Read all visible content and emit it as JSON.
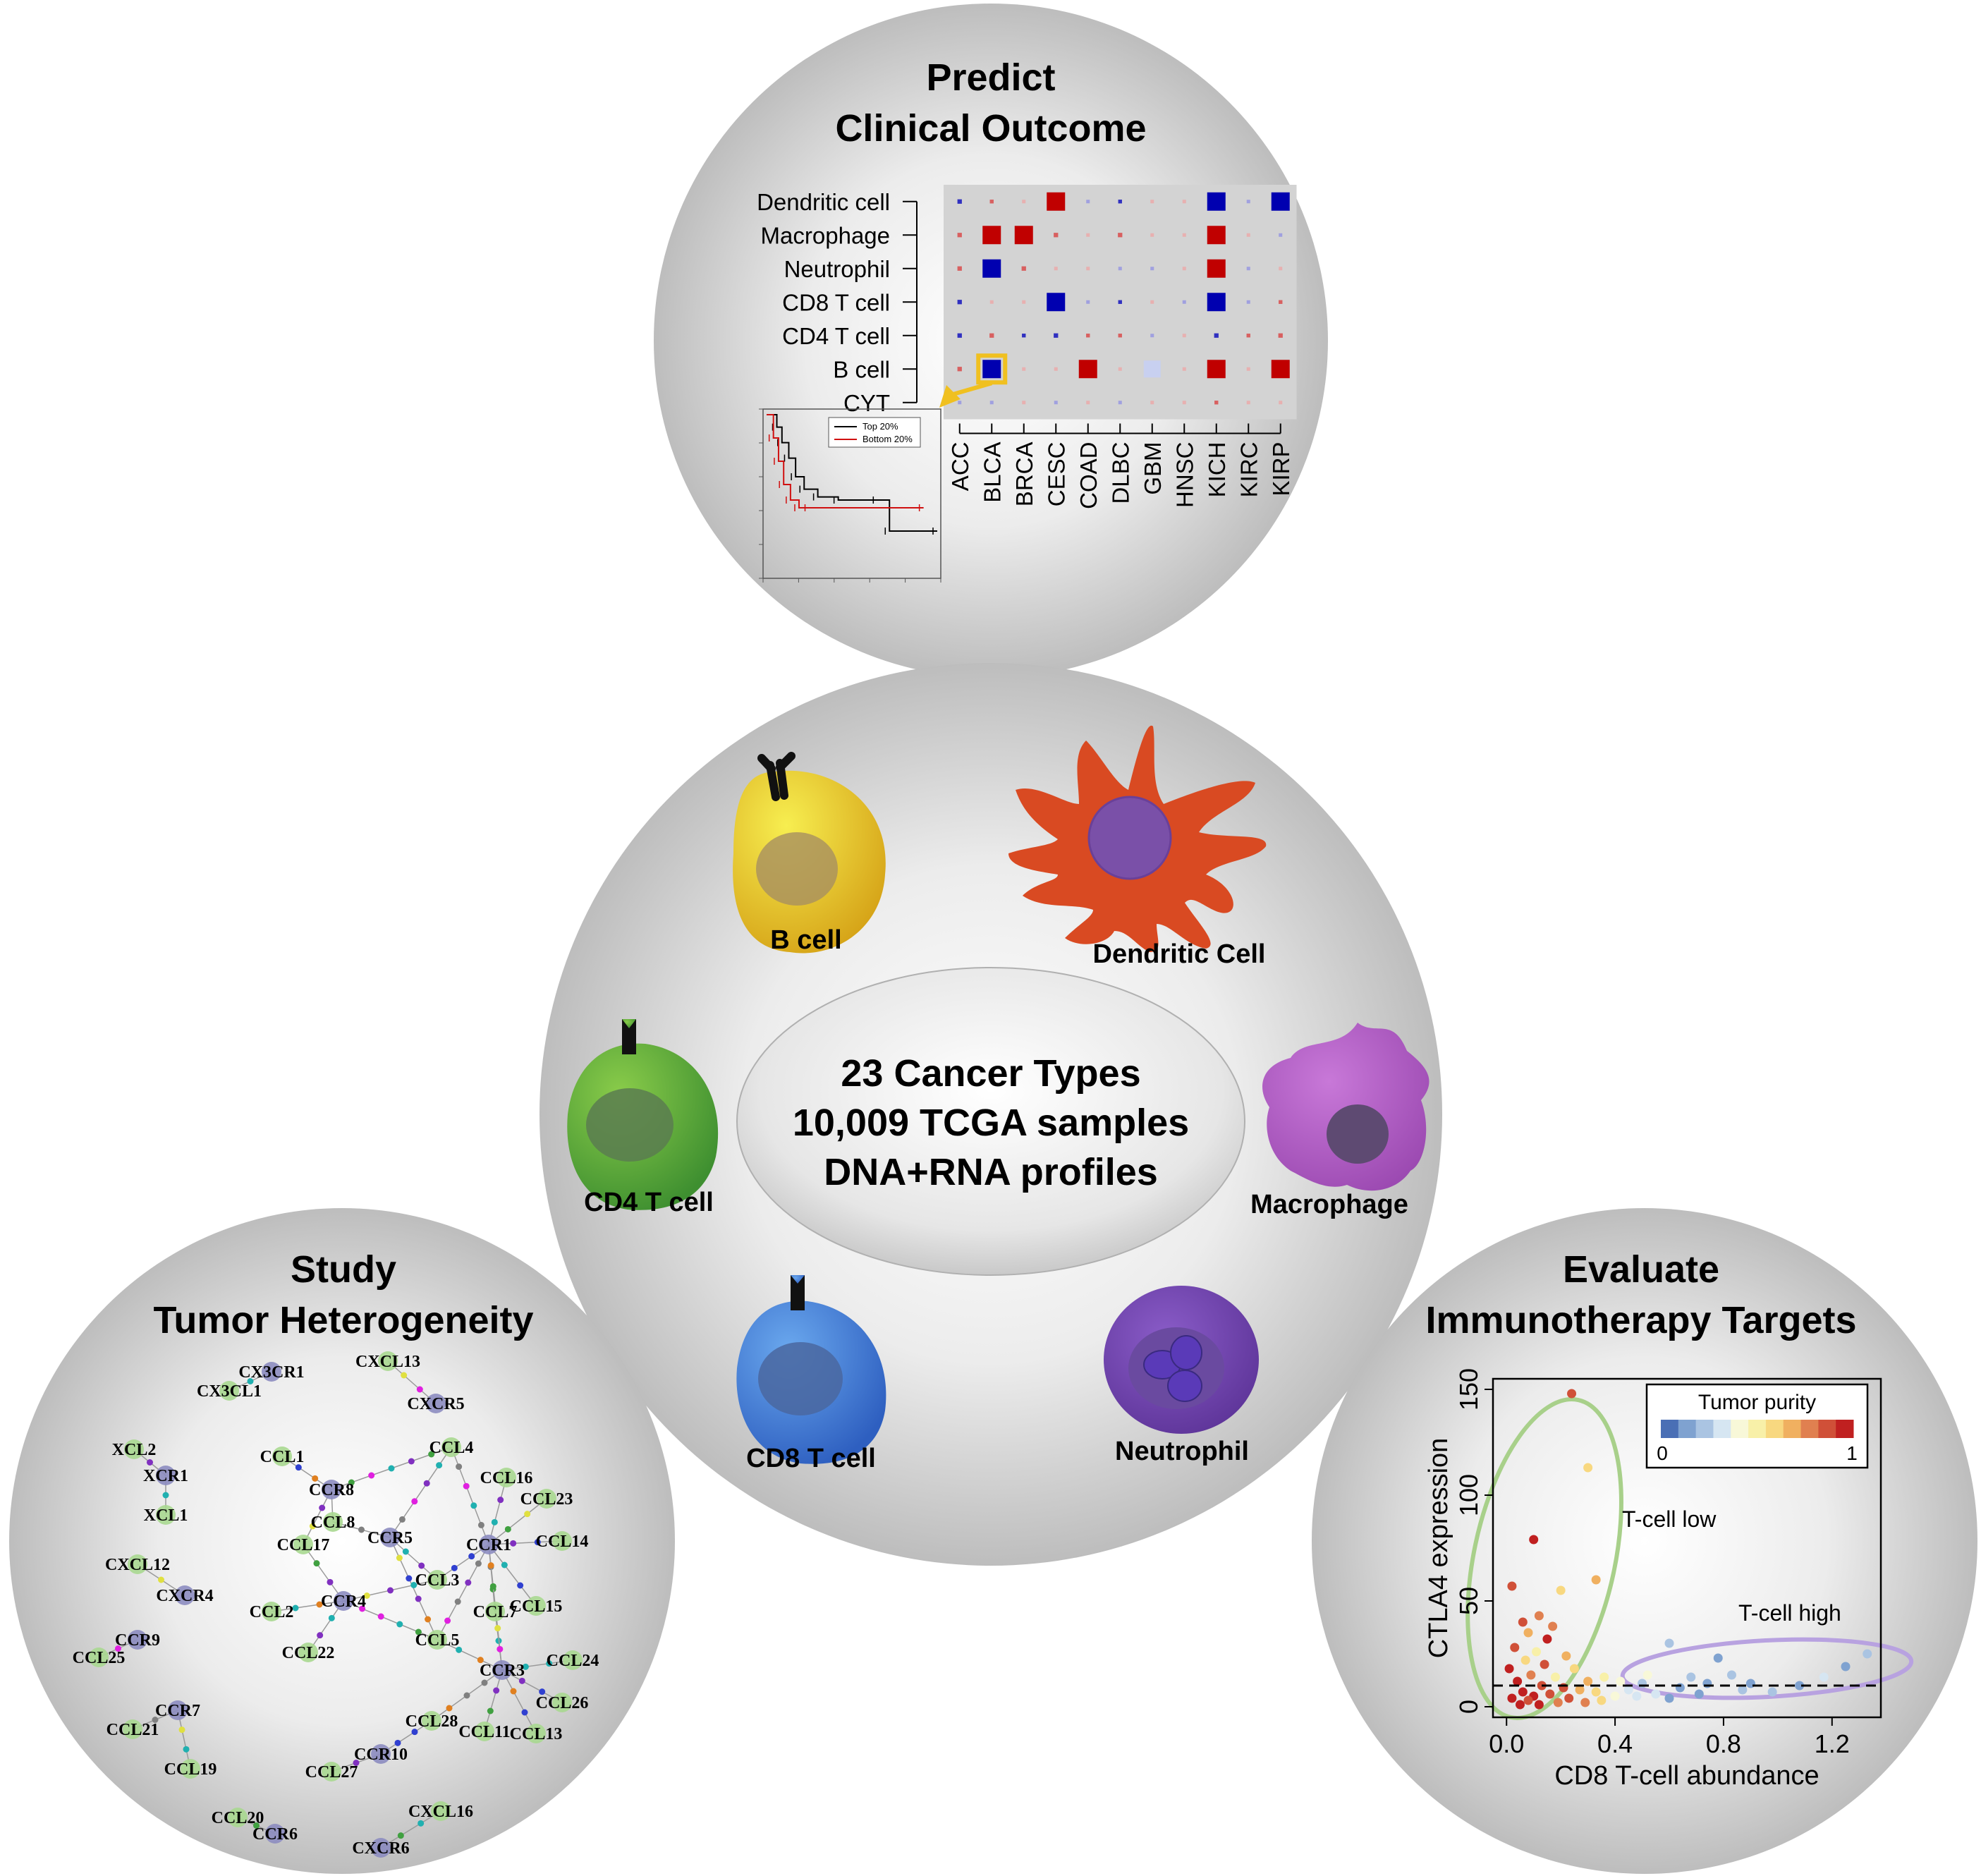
{
  "center": {
    "lines": [
      "23 Cancer Types",
      "10,009 TCGA samples",
      "DNA+RNA profiles"
    ],
    "cells": {
      "b_cell": "B cell",
      "dendritic": "Dendritic Cell",
      "cd4": "CD4 T cell",
      "macrophage": "Macrophage",
      "cd8": "CD8 T cell",
      "neutrophil": "Neutrophil"
    }
  },
  "clinical": {
    "title_line1": "Predict",
    "title_line2": "Clinical Outcome",
    "heatmap": {
      "rows": [
        "Dendritic cell",
        "Macrophage",
        "Neutrophil",
        "CD8 T cell",
        "CD4 T cell",
        "B cell",
        "CYT"
      ],
      "columns": [
        "ACC",
        "BLCA",
        "BRCA",
        "CESC",
        "COAD",
        "DLBC",
        "GBM",
        "HNSC",
        "KICH",
        "KIRC",
        "KIRP"
      ],
      "cells": [
        [
          -0.35,
          0.3,
          0.05,
          1.0,
          -0.05,
          -0.3,
          0.1,
          0.2,
          -1.0,
          -0.1,
          -1.0
        ],
        [
          0.35,
          1.0,
          1.0,
          0.35,
          0.2,
          0.35,
          0.15,
          0.2,
          1.0,
          0.05,
          -0.1
        ],
        [
          0.35,
          -1.0,
          0.35,
          0.05,
          0.05,
          -0.2,
          -0.25,
          0.2,
          1.0,
          -0.1,
          0.25
        ],
        [
          -0.35,
          0.25,
          0.05,
          -1.0,
          -0.05,
          -0.3,
          0.05,
          -0.2,
          -1.0,
          -0.2,
          0.3
        ],
        [
          -0.35,
          0.35,
          -0.3,
          -0.35,
          0.3,
          0.3,
          -0.2,
          0.25,
          -0.35,
          0.3,
          0.35
        ],
        [
          0.35,
          -1.0,
          0.05,
          0.2,
          1.0,
          0.05,
          -0.7,
          0.2,
          1.0,
          0.05,
          1.0
        ],
        [
          -0.1,
          -0.1,
          0.05,
          -0.05,
          0.05,
          -0.25,
          0.05,
          0.15,
          0.3,
          0.2,
          0.2
        ]
      ],
      "highlight": {
        "row": "B cell",
        "column": "BLCA"
      },
      "colors": {
        "positive": "#c00000",
        "negative": "#0000b0",
        "background": "#d3d3d3",
        "highlight": "#f0c020"
      }
    },
    "km_inset": {
      "legend": [
        "Top 20%",
        "Bottom 20%"
      ],
      "colors": [
        "#000000",
        "#d01010"
      ],
      "series": [
        {
          "name": "Top 20%",
          "x": [
            0,
            0.06,
            0.09,
            0.13,
            0.17,
            0.22,
            0.3,
            0.42,
            0.65,
            0.72,
            1.0
          ],
          "y": [
            1.0,
            0.92,
            0.82,
            0.72,
            0.6,
            0.52,
            0.47,
            0.45,
            0.45,
            0.25,
            0.25
          ]
        },
        {
          "name": "Bottom 20%",
          "x": [
            0,
            0.04,
            0.07,
            0.1,
            0.14,
            0.19,
            0.25,
            0.92
          ],
          "y": [
            1.0,
            0.85,
            0.7,
            0.55,
            0.45,
            0.4,
            0.4,
            0.4
          ]
        }
      ]
    }
  },
  "heterogeneity": {
    "title_line1": "Study",
    "title_line2": "Tumor Heterogeneity",
    "network": {
      "receptor_color": "#8c8cc0",
      "ligand_color": "#a8d890",
      "nodes": [
        {
          "id": "CX3CR1",
          "type": "receptor"
        },
        {
          "id": "CX3CL1",
          "type": "ligand"
        },
        {
          "id": "CXCL13",
          "type": "ligand"
        },
        {
          "id": "CXCR5",
          "type": "receptor"
        },
        {
          "id": "XCL2",
          "type": "ligand"
        },
        {
          "id": "XCR1",
          "type": "receptor"
        },
        {
          "id": "XCL1",
          "type": "ligand"
        },
        {
          "id": "CXCL12",
          "type": "ligand"
        },
        {
          "id": "CXCR4",
          "type": "receptor"
        },
        {
          "id": "CCR9",
          "type": "receptor"
        },
        {
          "id": "CCL25",
          "type": "ligand"
        },
        {
          "id": "CCR7",
          "type": "receptor"
        },
        {
          "id": "CCL21",
          "type": "ligand"
        },
        {
          "id": "CCL19",
          "type": "ligand"
        },
        {
          "id": "CCL1",
          "type": "ligand"
        },
        {
          "id": "CCR8",
          "type": "receptor"
        },
        {
          "id": "CCL4",
          "type": "ligand"
        },
        {
          "id": "CCL16",
          "type": "ligand"
        },
        {
          "id": "CCL23",
          "type": "ligand"
        },
        {
          "id": "CCL8",
          "type": "ligand"
        },
        {
          "id": "CCR5",
          "type": "receptor"
        },
        {
          "id": "CCR1",
          "type": "receptor"
        },
        {
          "id": "CCL14",
          "type": "ligand"
        },
        {
          "id": "CCL17",
          "type": "ligand"
        },
        {
          "id": "CCL3",
          "type": "ligand"
        },
        {
          "id": "CCL2",
          "type": "ligand"
        },
        {
          "id": "CCR4",
          "type": "receptor"
        },
        {
          "id": "CCL7",
          "type": "ligand"
        },
        {
          "id": "CCL15",
          "type": "ligand"
        },
        {
          "id": "CCL22",
          "type": "ligand"
        },
        {
          "id": "CCL5",
          "type": "ligand"
        },
        {
          "id": "CCL24",
          "type": "ligand"
        },
        {
          "id": "CCR3",
          "type": "receptor"
        },
        {
          "id": "CCL26",
          "type": "ligand"
        },
        {
          "id": "CCL28",
          "type": "ligand"
        },
        {
          "id": "CCL11",
          "type": "ligand"
        },
        {
          "id": "CCL13",
          "type": "ligand"
        },
        {
          "id": "CCR10",
          "type": "receptor"
        },
        {
          "id": "CCL27",
          "type": "ligand"
        },
        {
          "id": "CXCL16",
          "type": "ligand"
        },
        {
          "id": "CCL20",
          "type": "ligand"
        },
        {
          "id": "CCR6",
          "type": "receptor"
        },
        {
          "id": "CXCR6",
          "type": "receptor"
        }
      ],
      "edges": [
        [
          "CX3CR1",
          "CX3CL1"
        ],
        [
          "CXCL13",
          "CXCR5"
        ],
        [
          "XCL2",
          "XCR1"
        ],
        [
          "XCR1",
          "XCL1"
        ],
        [
          "CXCL12",
          "CXCR4"
        ],
        [
          "CCR9",
          "CCL25"
        ],
        [
          "CCR7",
          "CCL21"
        ],
        [
          "CCR7",
          "CCL19"
        ],
        [
          "CCL1",
          "CCR8"
        ],
        [
          "CCR8",
          "CCL4"
        ],
        [
          "CCR8",
          "CCL8"
        ],
        [
          "CCR8",
          "CCL17"
        ],
        [
          "CCL4",
          "CCR5"
        ],
        [
          "CCL4",
          "CCR1"
        ],
        [
          "CCL16",
          "CCR1"
        ],
        [
          "CCL23",
          "CCR1"
        ],
        [
          "CCL14",
          "CCR1"
        ],
        [
          "CCL8",
          "CCR5"
        ],
        [
          "CCR5",
          "CCL3"
        ],
        [
          "CCR5",
          "CCL5"
        ],
        [
          "CCL3",
          "CCR1"
        ],
        [
          "CCL5",
          "CCR1"
        ],
        [
          "CCL3",
          "CCR4"
        ],
        [
          "CCL2",
          "CCR4"
        ],
        [
          "CCL17",
          "CCR4"
        ],
        [
          "CCL22",
          "CCR4"
        ],
        [
          "CCR4",
          "CCL5"
        ],
        [
          "CCL7",
          "CCR1"
        ],
        [
          "CCL15",
          "CCR1"
        ],
        [
          "CCL7",
          "CCR3"
        ],
        [
          "CCL5",
          "CCR3"
        ],
        [
          "CCL24",
          "CCR3"
        ],
        [
          "CCL26",
          "CCR3"
        ],
        [
          "CCL11",
          "CCR3"
        ],
        [
          "CCL13",
          "CCR3"
        ],
        [
          "CCL28",
          "CCR3"
        ],
        [
          "CCR1",
          "CCR3"
        ],
        [
          "CCL28",
          "CCR10"
        ],
        [
          "CCR10",
          "CCL27"
        ],
        [
          "CXCL16",
          "CXCR6"
        ],
        [
          "CCL20",
          "CCR6"
        ]
      ]
    }
  },
  "immunotherapy": {
    "title_line1": "Evaluate",
    "title_line2": "Immunotherapy Targets",
    "chart_data": {
      "type": "scatter",
      "xlabel": "CD8 T-cell abundance",
      "ylabel": "CTLA4 expression",
      "xlim": [
        -0.05,
        1.38
      ],
      "ylim": [
        -5,
        155
      ],
      "xticks": [
        "0.0",
        "0.4",
        "0.8",
        "1.2"
      ],
      "yticks": [
        "0",
        "50",
        "100",
        "150"
      ],
      "threshold_y": 10,
      "legend": {
        "title": "Tumor purity",
        "min_label": "0",
        "max_label": "1",
        "colors": [
          "#4a6fb5",
          "#7fa2d0",
          "#aac4e2",
          "#d6e6f2",
          "#f8f8d8",
          "#f8f0a8",
          "#f8d880",
          "#f0b060",
          "#e08050",
          "#d05038",
          "#c02020"
        ]
      },
      "annotations": [
        "T-cell low",
        "T-cell high"
      ],
      "annotation_colors": {
        "T-cell low": "#a8d08a",
        "T-cell high": "#b8a2e0"
      },
      "points": [
        {
          "x": 0.24,
          "y": 148,
          "p": 0.85
        },
        {
          "x": 0.3,
          "y": 113,
          "p": 0.55
        },
        {
          "x": 0.1,
          "y": 79,
          "p": 0.95
        },
        {
          "x": 0.33,
          "y": 60,
          "p": 0.7
        },
        {
          "x": 0.2,
          "y": 55,
          "p": 0.6
        },
        {
          "x": 0.02,
          "y": 57,
          "p": 0.9
        },
        {
          "x": 0.12,
          "y": 43,
          "p": 0.75
        },
        {
          "x": 0.06,
          "y": 40,
          "p": 0.85
        },
        {
          "x": 0.17,
          "y": 38,
          "p": 0.8
        },
        {
          "x": 0.08,
          "y": 35,
          "p": 0.65
        },
        {
          "x": 0.15,
          "y": 32,
          "p": 0.95
        },
        {
          "x": 0.03,
          "y": 28,
          "p": 0.85
        },
        {
          "x": 0.11,
          "y": 26,
          "p": 0.5
        },
        {
          "x": 0.22,
          "y": 24,
          "p": 0.65
        },
        {
          "x": 0.07,
          "y": 22,
          "p": 0.55
        },
        {
          "x": 0.14,
          "y": 20,
          "p": 0.9
        },
        {
          "x": 0.25,
          "y": 18,
          "p": 0.6
        },
        {
          "x": 0.01,
          "y": 18,
          "p": 1.0
        },
        {
          "x": 0.09,
          "y": 15,
          "p": 0.8
        },
        {
          "x": 0.18,
          "y": 14,
          "p": 0.5
        },
        {
          "x": 0.3,
          "y": 12,
          "p": 0.7
        },
        {
          "x": 0.04,
          "y": 12,
          "p": 0.95
        },
        {
          "x": 0.13,
          "y": 10,
          "p": 0.85
        },
        {
          "x": 0.21,
          "y": 9,
          "p": 0.9
        },
        {
          "x": 0.27,
          "y": 8,
          "p": 0.7
        },
        {
          "x": 0.06,
          "y": 7,
          "p": 0.95
        },
        {
          "x": 0.16,
          "y": 6,
          "p": 0.85
        },
        {
          "x": 0.1,
          "y": 5,
          "p": 1.0
        },
        {
          "x": 0.23,
          "y": 4,
          "p": 0.9
        },
        {
          "x": 0.02,
          "y": 4,
          "p": 0.95
        },
        {
          "x": 0.08,
          "y": 3,
          "p": 0.85
        },
        {
          "x": 0.19,
          "y": 2,
          "p": 0.75
        },
        {
          "x": 0.29,
          "y": 2,
          "p": 0.8
        },
        {
          "x": 0.05,
          "y": 1,
          "p": 1.0
        },
        {
          "x": 0.12,
          "y": 1,
          "p": 0.95
        },
        {
          "x": 0.35,
          "y": 3,
          "p": 0.6
        },
        {
          "x": 0.4,
          "y": 5,
          "p": 0.4
        },
        {
          "x": 0.45,
          "y": 8,
          "p": 0.3
        },
        {
          "x": 0.5,
          "y": 11,
          "p": 0.2
        },
        {
          "x": 0.55,
          "y": 6,
          "p": 0.25
        },
        {
          "x": 0.6,
          "y": 30,
          "p": 0.15
        },
        {
          "x": 0.6,
          "y": 4,
          "p": 0.1
        },
        {
          "x": 0.68,
          "y": 14,
          "p": 0.2
        },
        {
          "x": 0.74,
          "y": 11,
          "p": 0.1
        },
        {
          "x": 0.78,
          "y": 23,
          "p": 0.1
        },
        {
          "x": 0.83,
          "y": 15,
          "p": 0.15
        },
        {
          "x": 0.9,
          "y": 11,
          "p": 0.05
        },
        {
          "x": 0.98,
          "y": 7,
          "p": 0.2
        },
        {
          "x": 1.08,
          "y": 10,
          "p": 0.1
        },
        {
          "x": 1.17,
          "y": 14,
          "p": 0.25
        },
        {
          "x": 1.25,
          "y": 19,
          "p": 0.1
        },
        {
          "x": 1.33,
          "y": 25,
          "p": 0.15
        },
        {
          "x": 0.36,
          "y": 14,
          "p": 0.45
        },
        {
          "x": 0.42,
          "y": 12,
          "p": 0.35
        },
        {
          "x": 0.48,
          "y": 5,
          "p": 0.3
        },
        {
          "x": 0.64,
          "y": 9,
          "p": 0.05
        },
        {
          "x": 0.71,
          "y": 6,
          "p": 0.12
        },
        {
          "x": 0.87,
          "y": 8,
          "p": 0.2
        },
        {
          "x": 0.52,
          "y": 15,
          "p": 0.35
        },
        {
          "x": 0.33,
          "y": 7,
          "p": 0.55
        }
      ]
    }
  }
}
